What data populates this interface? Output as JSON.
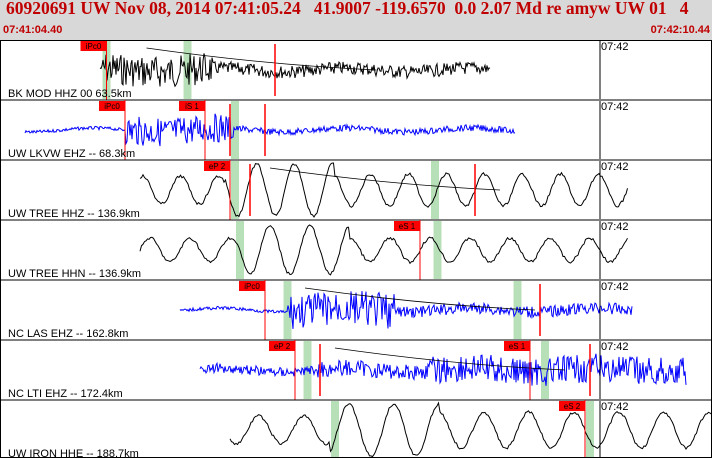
{
  "header": {
    "title": "60920691 UW Nov 08, 2014 07:41:05.24   41.9007 -119.6570  0.0 2.07 Md re amyw UW 01   4",
    "start_time": "07:41:04.40",
    "end_time": "07:42:10.44"
  },
  "colors": {
    "header_background": "#d8d8d8",
    "header_text": "#c00000",
    "trace_black": "#000000",
    "trace_blue": "#0000ff",
    "pick_flag": "#ff0000",
    "pick_window": "#b8e0b8",
    "minute_marker": "#000000"
  },
  "traces": [
    {
      "label": "BK MOD HHZ 00 63.5km",
      "minute_label": "07:42",
      "color": "black",
      "picks": [
        {
          "label": "iPc0",
          "t": 21.3
        }
      ],
      "windows": [
        {
          "t": 21.3
        },
        {
          "t": 37.5
        }
      ],
      "markers": [
        {
          "t": 55.0
        }
      ]
    },
    {
      "label": "UW LKVW EHZ -- 68.3km",
      "minute_label": "07:42",
      "color": "blue",
      "picks": [
        {
          "label": "iPc0",
          "t": 25.0
        },
        {
          "label": "iS 1",
          "t": 41.0
        }
      ],
      "windows": [
        {
          "t": 47.0
        }
      ],
      "markers": [
        {
          "t": 46.0
        },
        {
          "t": 53.0
        }
      ]
    },
    {
      "label": "UW TREE HHZ -- 136.9km",
      "minute_label": "07:42",
      "color": "black",
      "picks": [
        {
          "label": "eP 2",
          "t": 46.0
        }
      ],
      "windows": [
        {
          "t": 47.0
        },
        {
          "t": 87.0
        }
      ],
      "markers": [
        {
          "t": 50.0
        },
        {
          "t": 95.0
        }
      ]
    },
    {
      "label": "UW TREE HHN -- 136.9km",
      "minute_label": "07:42",
      "color": "black",
      "picks": [
        {
          "label": "eS 1",
          "t": 84.0
        }
      ],
      "windows": [
        {
          "t": 48.0
        },
        {
          "t": 87.5
        }
      ],
      "markers": []
    },
    {
      "label": "NC LAS EHZ -- 162.8km",
      "minute_label": "07:42",
      "color": "blue",
      "picks": [
        {
          "label": "iPc0",
          "t": 53.0
        }
      ],
      "windows": [
        {
          "t": 57.5
        },
        {
          "t": 103.5
        }
      ],
      "markers": [
        {
          "t": 108.0
        }
      ]
    },
    {
      "label": "NC LTI EHZ -- 172.4km",
      "minute_label": "07:42",
      "color": "blue",
      "picks": [
        {
          "label": "eP 2",
          "t": 59.0
        },
        {
          "label": "eS 1",
          "t": 106.0
        }
      ],
      "windows": [
        {
          "t": 61.5
        },
        {
          "t": 109.0
        }
      ],
      "markers": [
        {
          "t": 64.0
        },
        {
          "t": 118.0
        }
      ]
    },
    {
      "label": "UW IRON HHE -- 188.7km",
      "minute_label": "07:42",
      "color": "black",
      "picks": [
        {
          "label": "eS 2",
          "t": 117.0
        }
      ],
      "windows": [
        {
          "t": 67.0
        },
        {
          "t": 118.0
        }
      ],
      "markers": []
    }
  ]
}
